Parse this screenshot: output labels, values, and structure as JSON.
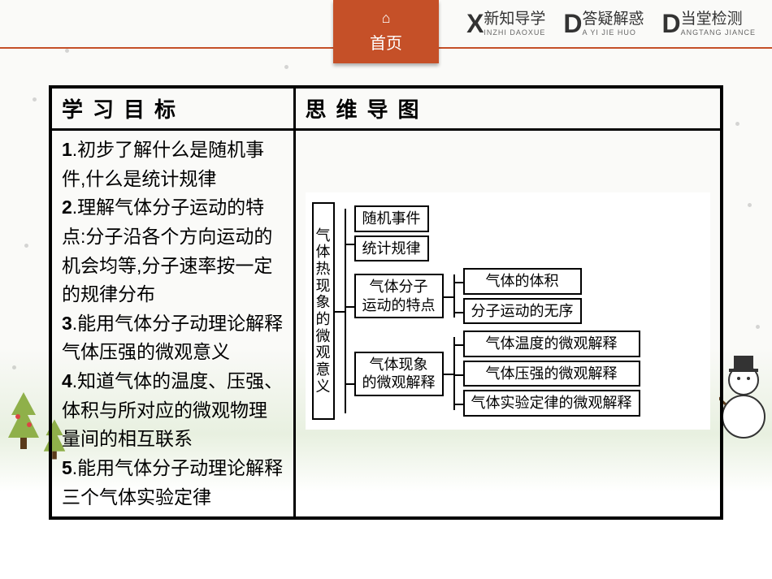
{
  "nav": {
    "home": {
      "icon": "⌂",
      "label": "首页"
    },
    "items": [
      {
        "letter": "X",
        "label": "新知导学",
        "sub": "INZHI DAOXUE"
      },
      {
        "letter": "D",
        "label": "答疑解惑",
        "sub": "A YI JIE HUO"
      },
      {
        "letter": "D",
        "label": "当堂检测",
        "sub": "ANGTANG JIANCE"
      }
    ]
  },
  "table": {
    "headers": [
      "学习目标",
      "思维导图"
    ],
    "objectives": [
      {
        "n": "1",
        "text": ".初步了解什么是随机事件,什么是统计规律"
      },
      {
        "n": "2",
        "text": ".理解气体分子运动的特点:分子沿各个方向运动的机会均等,分子速率按一定的规律分布"
      },
      {
        "n": "3",
        "text": ".能用气体分子动理论解释气体压强的微观意义"
      },
      {
        "n": "4",
        "text": ".知道气体的温度、压强、体积与所对应的微观物理量间的相互联系"
      },
      {
        "n": "5",
        "text": ".能用气体分子动理论解释三个气体实验定律"
      }
    ]
  },
  "mindmap": {
    "root": "气体热现象的微观意义",
    "branches": [
      {
        "node": null,
        "leaves": [
          "随机事件",
          "统计规律"
        ]
      },
      {
        "node": "气体分子\n运动的特点",
        "leaves": [
          "气体的体积",
          "分子运动的无序"
        ]
      },
      {
        "node": "气体现象\n的微观解释",
        "leaves": [
          "气体温度的微观解释",
          "气体压强的微观解释",
          "气体实验定律的微观解释"
        ]
      }
    ]
  },
  "colors": {
    "accent": "#c55028",
    "border": "#000000",
    "text": "#333333"
  }
}
